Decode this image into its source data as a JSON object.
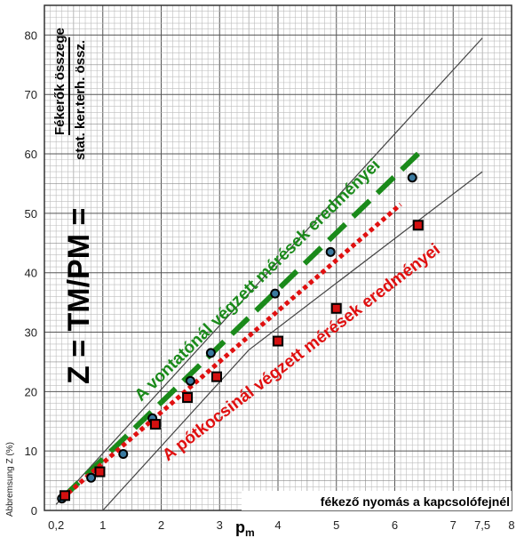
{
  "chart_data": {
    "type": "scatter",
    "formula": "Z = TM/PM =",
    "fraction_numerator": "Fékerők összege",
    "fraction_denominator": "stat. ker.terh. össz.",
    "ylabel": "Abbremsung Z (%)",
    "xlabel": "p",
    "xlabel_sub": "m",
    "bottom_annotation": "fékező nyomás a kapcsolófejnél",
    "xlim": [
      0,
      8
    ],
    "ylim": [
      0,
      85
    ],
    "x_ticks": [
      0.2,
      1,
      2,
      3,
      4,
      5,
      6,
      7,
      7.5,
      8
    ],
    "x_tick_labels": [
      "0,2",
      "1",
      "2",
      "3",
      "4",
      "5",
      "6",
      "7",
      "7,5",
      "8"
    ],
    "y_ticks": [
      0,
      10,
      20,
      30,
      40,
      50,
      60,
      70,
      80
    ],
    "y_tick_labels": [
      "0",
      "10",
      "20",
      "30",
      "40",
      "50",
      "60",
      "70",
      "80"
    ],
    "envelope_lines": [
      {
        "points": [
          [
            0.2,
            1
          ],
          [
            7.5,
            79.5
          ]
        ]
      },
      {
        "points": [
          [
            1,
            0
          ],
          [
            3.5,
            27
          ],
          [
            7.5,
            57
          ]
        ]
      }
    ],
    "series": [
      {
        "name": "A vontatónál végzett mérések eredményei",
        "color": "#1a8a1a",
        "marker": "circle",
        "points": [
          [
            0.3,
            2
          ],
          [
            0.8,
            5.5
          ],
          [
            1.35,
            9.5
          ],
          [
            1.85,
            15.5
          ],
          [
            2.5,
            21.8
          ],
          [
            2.85,
            26.5
          ],
          [
            3.95,
            36.5
          ],
          [
            4.9,
            43.5
          ],
          [
            6.3,
            56
          ]
        ],
        "trend": [
          [
            0.3,
            2
          ],
          [
            6.45,
            60.5
          ]
        ]
      },
      {
        "name": "A pótkocsinál végzett mérések eredményei",
        "color": "#e01010",
        "marker": "square",
        "points": [
          [
            0.35,
            2.5
          ],
          [
            0.95,
            6.5
          ],
          [
            1.9,
            14.5
          ],
          [
            2.45,
            19
          ],
          [
            2.95,
            22.5
          ],
          [
            4.0,
            28.5
          ],
          [
            5.0,
            34
          ],
          [
            6.4,
            48
          ]
        ],
        "trend": [
          [
            0.3,
            2
          ],
          [
            6.1,
            51.5
          ]
        ]
      }
    ]
  }
}
